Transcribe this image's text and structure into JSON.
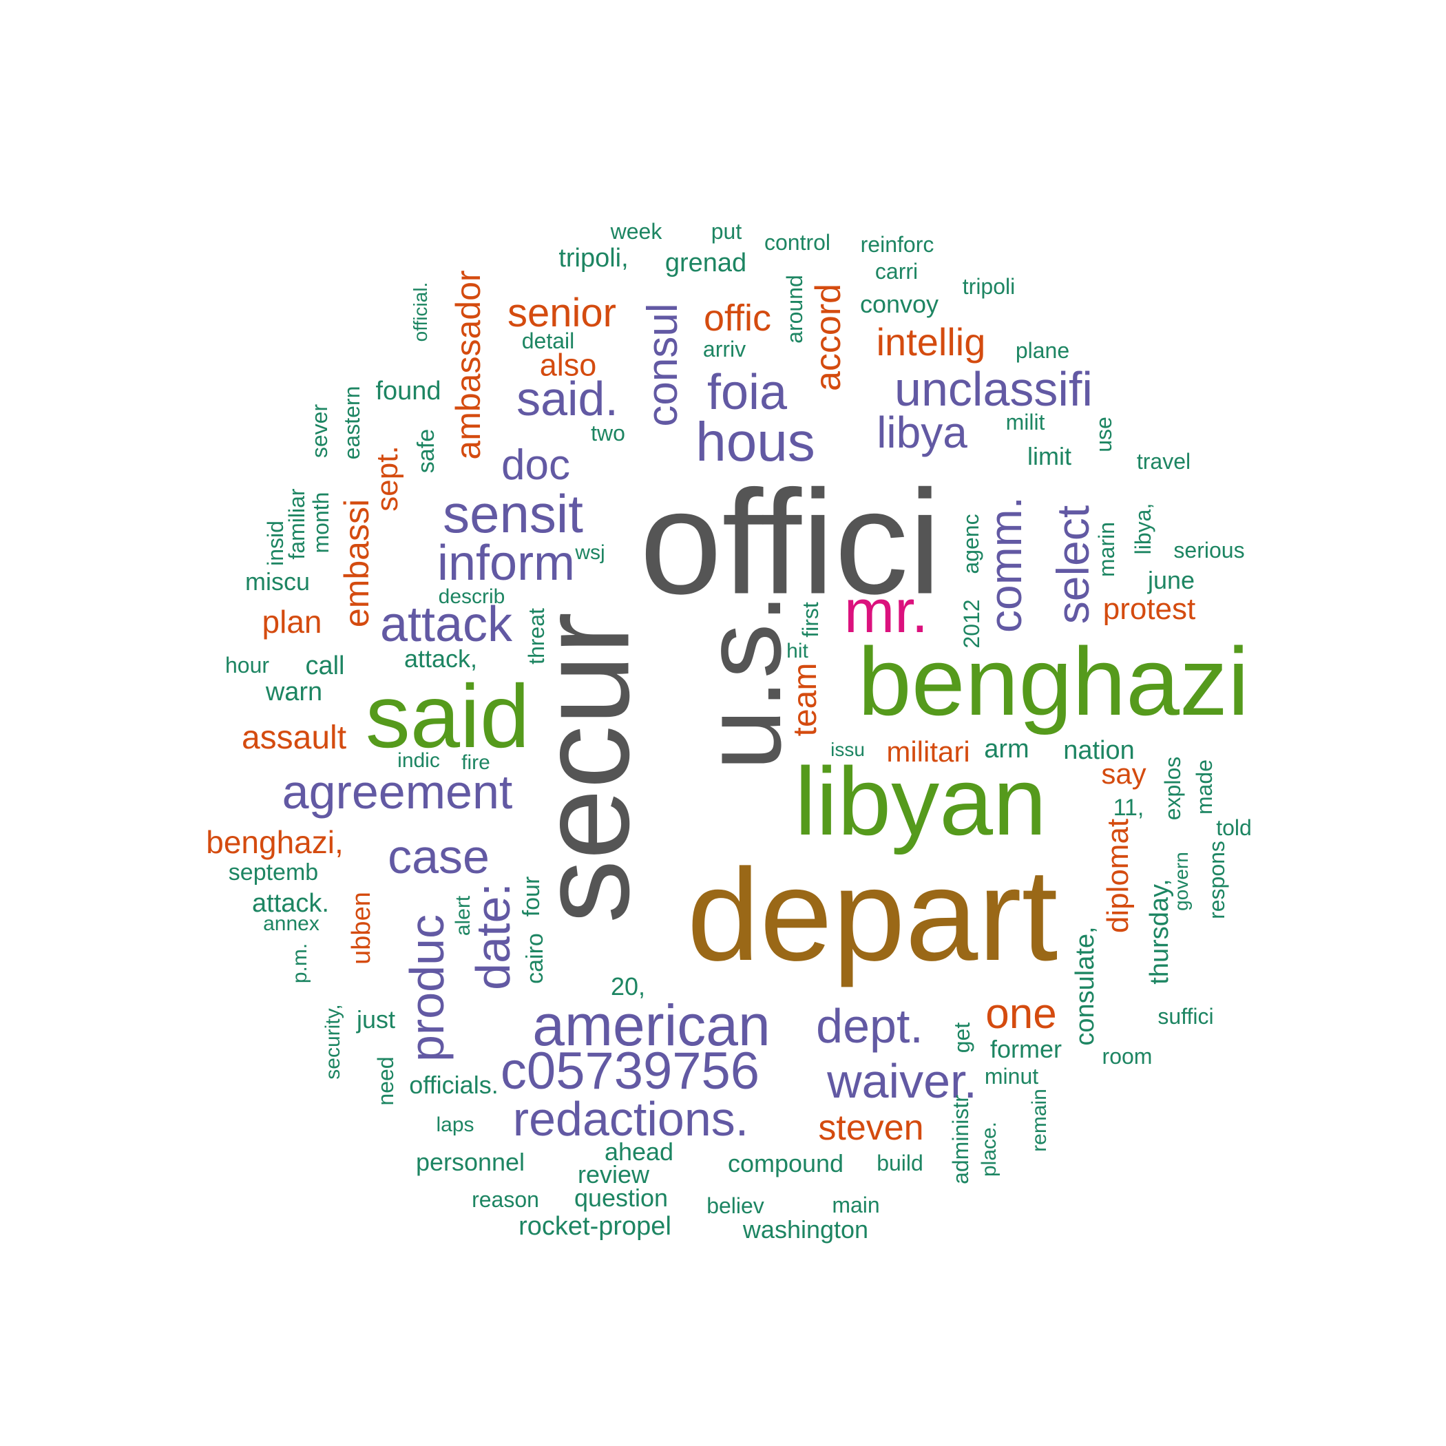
{
  "colors": {
    "gray": "#555555",
    "green": "#559A1C",
    "brown": "#9A6817",
    "purple": "#6259A3",
    "magenta": "#DB117D",
    "orange": "#D44B0F",
    "teal": "#1D8562"
  },
  "words": [
    {
      "text": "offici",
      "color": "gray"
    },
    {
      "text": "u.s.",
      "color": "gray"
    },
    {
      "text": "secur",
      "color": "gray"
    },
    {
      "text": "depart",
      "color": "brown"
    },
    {
      "text": "benghazi",
      "color": "green"
    },
    {
      "text": "libyan",
      "color": "green"
    },
    {
      "text": "said",
      "color": "green"
    },
    {
      "text": "mr.",
      "color": "magenta"
    },
    {
      "text": "agreement",
      "color": "purple"
    },
    {
      "text": "american",
      "color": "purple"
    },
    {
      "text": "c05739756",
      "color": "purple"
    },
    {
      "text": "redactions.",
      "color": "purple"
    },
    {
      "text": "waiver.",
      "color": "purple"
    },
    {
      "text": "dept.",
      "color": "purple"
    },
    {
      "text": "case",
      "color": "purple"
    },
    {
      "text": "produc",
      "color": "purple"
    },
    {
      "text": "date:",
      "color": "purple"
    },
    {
      "text": "attack",
      "color": "purple"
    },
    {
      "text": "inform",
      "color": "purple"
    },
    {
      "text": "sensit",
      "color": "purple"
    },
    {
      "text": "doc",
      "color": "purple"
    },
    {
      "text": "said.",
      "color": "purple"
    },
    {
      "text": "hous",
      "color": "purple"
    },
    {
      "text": "foia",
      "color": "purple"
    },
    {
      "text": "consul",
      "color": "purple"
    },
    {
      "text": "unclassifi",
      "color": "purple"
    },
    {
      "text": "libya",
      "color": "purple"
    },
    {
      "text": "comm.",
      "color": "purple"
    },
    {
      "text": "select",
      "color": "purple"
    },
    {
      "text": "senior",
      "color": "orange"
    },
    {
      "text": "offic",
      "color": "orange"
    },
    {
      "text": "accord",
      "color": "orange"
    },
    {
      "text": "intellig",
      "color": "orange"
    },
    {
      "text": "also",
      "color": "orange"
    },
    {
      "text": "ambassador",
      "color": "orange"
    },
    {
      "text": "embassi",
      "color": "orange"
    },
    {
      "text": "sept.",
      "color": "orange"
    },
    {
      "text": "plan",
      "color": "orange"
    },
    {
      "text": "assault",
      "color": "orange"
    },
    {
      "text": "benghazi,",
      "color": "orange"
    },
    {
      "text": "ubben",
      "color": "orange"
    },
    {
      "text": "team",
      "color": "orange"
    },
    {
      "text": "militari",
      "color": "orange"
    },
    {
      "text": "say",
      "color": "orange"
    },
    {
      "text": "protest",
      "color": "orange"
    },
    {
      "text": "diplomat",
      "color": "orange"
    },
    {
      "text": "one",
      "color": "orange"
    },
    {
      "text": "steven",
      "color": "orange"
    },
    {
      "text": "week",
      "color": "teal"
    },
    {
      "text": "put",
      "color": "teal"
    },
    {
      "text": "control",
      "color": "teal"
    },
    {
      "text": "reinforc",
      "color": "teal"
    },
    {
      "text": "tripoli,",
      "color": "teal"
    },
    {
      "text": "grenad",
      "color": "teal"
    },
    {
      "text": "carri",
      "color": "teal"
    },
    {
      "text": "tripoli",
      "color": "teal"
    },
    {
      "text": "convoy",
      "color": "teal"
    },
    {
      "text": "around",
      "color": "teal"
    },
    {
      "text": "official.",
      "color": "teal"
    },
    {
      "text": "detail",
      "color": "teal"
    },
    {
      "text": "arriv",
      "color": "teal"
    },
    {
      "text": "plane",
      "color": "teal"
    },
    {
      "text": "found",
      "color": "teal"
    },
    {
      "text": "eastern",
      "color": "teal"
    },
    {
      "text": "sever",
      "color": "teal"
    },
    {
      "text": "two",
      "color": "teal"
    },
    {
      "text": "milit",
      "color": "teal"
    },
    {
      "text": "use",
      "color": "teal"
    },
    {
      "text": "safe",
      "color": "teal"
    },
    {
      "text": "limit",
      "color": "teal"
    },
    {
      "text": "travel",
      "color": "teal"
    },
    {
      "text": "familiar",
      "color": "teal"
    },
    {
      "text": "insid",
      "color": "teal"
    },
    {
      "text": "month",
      "color": "teal"
    },
    {
      "text": "agenc",
      "color": "teal"
    },
    {
      "text": "marin",
      "color": "teal"
    },
    {
      "text": "libya,",
      "color": "teal"
    },
    {
      "text": "wsj",
      "color": "teal"
    },
    {
      "text": "serious",
      "color": "teal"
    },
    {
      "text": "miscu",
      "color": "teal"
    },
    {
      "text": "describ",
      "color": "teal"
    },
    {
      "text": "june",
      "color": "teal"
    },
    {
      "text": "threat",
      "color": "teal"
    },
    {
      "text": "2012",
      "color": "teal"
    },
    {
      "text": "first",
      "color": "teal"
    },
    {
      "text": "hit",
      "color": "teal"
    },
    {
      "text": "hour",
      "color": "teal"
    },
    {
      "text": "call",
      "color": "teal"
    },
    {
      "text": "attack,",
      "color": "teal"
    },
    {
      "text": "warn",
      "color": "teal"
    },
    {
      "text": "issu",
      "color": "teal"
    },
    {
      "text": "arm",
      "color": "teal"
    },
    {
      "text": "nation",
      "color": "teal"
    },
    {
      "text": "explos",
      "color": "teal"
    },
    {
      "text": "made",
      "color": "teal"
    },
    {
      "text": "indic",
      "color": "teal"
    },
    {
      "text": "fire",
      "color": "teal"
    },
    {
      "text": "11,",
      "color": "teal"
    },
    {
      "text": "told",
      "color": "teal"
    },
    {
      "text": "septemb",
      "color": "teal"
    },
    {
      "text": "respons",
      "color": "teal"
    },
    {
      "text": "govern",
      "color": "teal"
    },
    {
      "text": "thursday,",
      "color": "teal"
    },
    {
      "text": "attack.",
      "color": "teal"
    },
    {
      "text": "annex",
      "color": "teal"
    },
    {
      "text": "alert",
      "color": "teal"
    },
    {
      "text": "four",
      "color": "teal"
    },
    {
      "text": "cairo",
      "color": "teal"
    },
    {
      "text": "p.m.",
      "color": "teal"
    },
    {
      "text": "20,",
      "color": "teal"
    },
    {
      "text": "consulate,",
      "color": "teal"
    },
    {
      "text": "suffici",
      "color": "teal"
    },
    {
      "text": "just",
      "color": "teal"
    },
    {
      "text": "security,",
      "color": "teal"
    },
    {
      "text": "get",
      "color": "teal"
    },
    {
      "text": "former",
      "color": "teal"
    },
    {
      "text": "room",
      "color": "teal"
    },
    {
      "text": "need",
      "color": "teal"
    },
    {
      "text": "officials.",
      "color": "teal"
    },
    {
      "text": "minut",
      "color": "teal"
    },
    {
      "text": "remain",
      "color": "teal"
    },
    {
      "text": "laps",
      "color": "teal"
    },
    {
      "text": "administr",
      "color": "teal"
    },
    {
      "text": "place.",
      "color": "teal"
    },
    {
      "text": "ahead",
      "color": "teal"
    },
    {
      "text": "personnel",
      "color": "teal"
    },
    {
      "text": "compound",
      "color": "teal"
    },
    {
      "text": "build",
      "color": "teal"
    },
    {
      "text": "review",
      "color": "teal"
    },
    {
      "text": "reason",
      "color": "teal"
    },
    {
      "text": "question",
      "color": "teal"
    },
    {
      "text": "believ",
      "color": "teal"
    },
    {
      "text": "main",
      "color": "teal"
    },
    {
      "text": "rocket-propel",
      "color": "teal"
    },
    {
      "text": "washington",
      "color": "teal"
    }
  ]
}
